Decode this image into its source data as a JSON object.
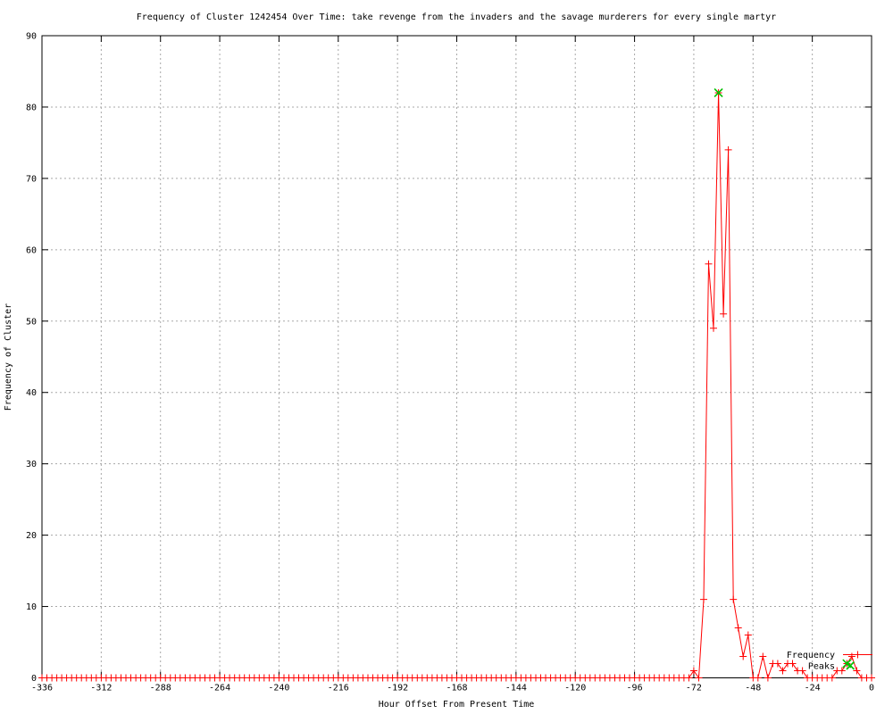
{
  "chart_data": {
    "type": "line",
    "title": "Frequency of Cluster 1242454 Over Time: take revenge from the invaders and the savage murderers for every single martyr",
    "xlabel": "Hour Offset From Present Time",
    "ylabel": "Frequency of Cluster",
    "xlim": [
      -336,
      0
    ],
    "ylim": [
      0,
      90
    ],
    "xticks": [
      -336,
      -312,
      -288,
      -264,
      -240,
      -216,
      -192,
      -168,
      -144,
      -120,
      -96,
      -72,
      -48,
      -24,
      0
    ],
    "yticks": [
      0,
      10,
      20,
      30,
      40,
      50,
      60,
      70,
      80,
      90
    ],
    "grid": true,
    "legend_position": "inside-bottom-right",
    "colors": {
      "frequency_line": "#ff0000",
      "peaks_marker": "#00c000",
      "grid_line": "#a8a8a8",
      "axis": "#000000",
      "background": "#ffffff"
    },
    "series": [
      {
        "name": "Frequency",
        "style": "linespoints",
        "marker": "plus",
        "color": "#ff0000",
        "x_start": -336,
        "x_step": 2,
        "values": [
          0,
          0,
          0,
          0,
          0,
          0,
          0,
          0,
          0,
          0,
          0,
          0,
          0,
          0,
          0,
          0,
          0,
          0,
          0,
          0,
          0,
          0,
          0,
          0,
          0,
          0,
          0,
          0,
          0,
          0,
          0,
          0,
          0,
          0,
          0,
          0,
          0,
          0,
          0,
          0,
          0,
          0,
          0,
          0,
          0,
          0,
          0,
          0,
          0,
          0,
          0,
          0,
          0,
          0,
          0,
          0,
          0,
          0,
          0,
          0,
          0,
          0,
          0,
          0,
          0,
          0,
          0,
          0,
          0,
          0,
          0,
          0,
          0,
          0,
          0,
          0,
          0,
          0,
          0,
          0,
          0,
          0,
          0,
          0,
          0,
          0,
          0,
          0,
          0,
          0,
          0,
          0,
          0,
          0,
          0,
          0,
          0,
          0,
          0,
          0,
          0,
          0,
          0,
          0,
          0,
          0,
          0,
          0,
          0,
          0,
          0,
          0,
          0,
          0,
          0,
          0,
          0,
          0,
          0,
          0,
          0,
          0,
          0,
          0,
          0,
          0,
          0,
          0,
          0,
          0,
          0,
          0,
          1,
          0,
          11,
          58,
          49,
          82,
          51,
          74,
          11,
          7,
          3,
          6,
          0,
          0,
          3,
          0,
          2,
          2,
          1,
          2,
          2,
          1,
          1,
          0,
          0,
          0,
          0,
          0,
          0,
          1,
          1,
          2,
          3,
          1,
          0,
          0,
          0
        ]
      },
      {
        "name": "Peaks",
        "style": "points",
        "marker": "x",
        "color": "#00c000",
        "points": [
          {
            "x": -62,
            "y": 82
          },
          {
            "x": -10,
            "y": 2
          }
        ]
      }
    ]
  }
}
